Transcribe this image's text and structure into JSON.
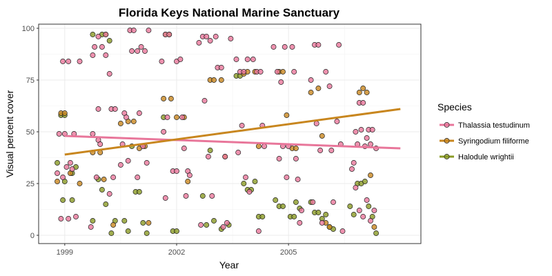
{
  "chart_data": {
    "type": "scatter",
    "title": "Florida Keys National Marine Sanctuary",
    "xlabel": "Year",
    "ylabel": "Visual percent cover",
    "xlim": [
      1998.3,
      2008.55
    ],
    "ylim": [
      -4,
      102
    ],
    "x_ticks": [
      1999,
      2002,
      2005
    ],
    "y_ticks": [
      0,
      25,
      50,
      75,
      100
    ],
    "grid": true,
    "legend": {
      "title": "Species",
      "position": "right"
    },
    "series": [
      {
        "name": "Thalassia testudinum",
        "color": "#E8769A",
        "trend": {
          "x": [
            1999,
            2008
          ],
          "y": [
            48,
            42
          ]
        },
        "points": [
          [
            1998.9,
            8
          ],
          [
            1999.1,
            8
          ],
          [
            1998.95,
            28
          ],
          [
            1999.05,
            33
          ],
          [
            1999.15,
            35
          ],
          [
            1998.85,
            49
          ],
          [
            1999.0,
            49
          ],
          [
            1999.25,
            49
          ],
          [
            1998.95,
            84
          ],
          [
            1999.1,
            84
          ],
          [
            1999.4,
            84
          ],
          [
            1999.3,
            9
          ],
          [
            1998.8,
            30
          ],
          [
            1999.2,
            32
          ],
          [
            1999.7,
            4
          ],
          [
            1999.85,
            28
          ],
          [
            1999.9,
            46
          ],
          [
            1999.75,
            49
          ],
          [
            1999.9,
            61
          ],
          [
            1999.75,
            87
          ],
          [
            1999.8,
            91
          ],
          [
            1999.9,
            96
          ],
          [
            2000.0,
            91
          ],
          [
            2000.1,
            87
          ],
          [
            2000.1,
            97
          ],
          [
            2000.2,
            78
          ],
          [
            2000.25,
            61
          ],
          [
            2000.35,
            61
          ],
          [
            2000.3,
            28
          ],
          [
            2000.2,
            20
          ],
          [
            1999.95,
            44
          ],
          [
            2000.5,
            34
          ],
          [
            2000.55,
            44
          ],
          [
            2000.6,
            59
          ],
          [
            2000.65,
            57
          ],
          [
            2000.7,
            36
          ],
          [
            2000.75,
            99
          ],
          [
            2000.85,
            99
          ],
          [
            2000.8,
            89
          ],
          [
            2000.95,
            89
          ],
          [
            2001.05,
            91
          ],
          [
            2001.15,
            89
          ],
          [
            2001.0,
            59
          ],
          [
            2001.1,
            43
          ],
          [
            2001.2,
            35
          ],
          [
            2001.25,
            99
          ],
          [
            2000.95,
            28
          ],
          [
            2001.6,
            84
          ],
          [
            2001.7,
            97
          ],
          [
            2001.8,
            97
          ],
          [
            2001.75,
            57
          ],
          [
            2001.9,
            31
          ],
          [
            2001.65,
            50
          ],
          [
            2001.7,
            18
          ],
          [
            2002.0,
            84
          ],
          [
            2002.1,
            85
          ],
          [
            2002.15,
            57
          ],
          [
            2002.2,
            42
          ],
          [
            2002.25,
            19
          ],
          [
            2002.3,
            31
          ],
          [
            2002.35,
            29
          ],
          [
            2002.0,
            31
          ],
          [
            2002.6,
            93
          ],
          [
            2002.7,
            96
          ],
          [
            2002.8,
            96
          ],
          [
            2002.9,
            94
          ],
          [
            2002.75,
            65
          ],
          [
            2002.85,
            38
          ],
          [
            2002.95,
            19
          ],
          [
            2002.65,
            5
          ],
          [
            2003.05,
            96
          ],
          [
            2003.1,
            81
          ],
          [
            2003.2,
            81
          ],
          [
            2003.3,
            38
          ],
          [
            2003.25,
            4
          ],
          [
            2003.35,
            6
          ],
          [
            2003.45,
            95
          ],
          [
            2003.6,
            85
          ],
          [
            2003.7,
            79
          ],
          [
            2003.8,
            79
          ],
          [
            2003.9,
            85
          ],
          [
            2003.75,
            53
          ],
          [
            2003.65,
            40
          ],
          [
            2003.85,
            28
          ],
          [
            2003.95,
            21
          ],
          [
            2004.05,
            85
          ],
          [
            2004.15,
            79
          ],
          [
            2004.25,
            79
          ],
          [
            2004.3,
            53
          ],
          [
            2004.35,
            43
          ],
          [
            2004.2,
            2
          ],
          [
            2004.6,
            91
          ],
          [
            2004.7,
            79
          ],
          [
            2004.8,
            74
          ],
          [
            2004.9,
            91
          ],
          [
            2004.85,
            43
          ],
          [
            2004.75,
            37
          ],
          [
            2004.95,
            28
          ],
          [
            2005.0,
            43
          ],
          [
            2005.1,
            91
          ],
          [
            2005.15,
            79
          ],
          [
            2005.2,
            37
          ],
          [
            2005.25,
            27
          ],
          [
            2005.3,
            6
          ],
          [
            2005.35,
            12
          ],
          [
            2005.6,
            75
          ],
          [
            2005.7,
            92
          ],
          [
            2005.8,
            92
          ],
          [
            2005.75,
            54
          ],
          [
            2005.85,
            41
          ],
          [
            2005.65,
            16
          ],
          [
            2005.9,
            6
          ],
          [
            2006.0,
            79
          ],
          [
            2006.1,
            72
          ],
          [
            2006.15,
            41
          ],
          [
            2006.2,
            16
          ],
          [
            2006.3,
            55
          ],
          [
            2006.35,
            92
          ],
          [
            2006.4,
            44
          ],
          [
            2006.45,
            2
          ],
          [
            2006.7,
            32
          ],
          [
            2006.75,
            35
          ],
          [
            2006.8,
            50
          ],
          [
            2006.85,
            44
          ],
          [
            2006.9,
            64
          ],
          [
            2006.95,
            51
          ],
          [
            2007.0,
            64
          ],
          [
            2007.05,
            43
          ],
          [
            2007.1,
            47
          ],
          [
            2007.15,
            51
          ],
          [
            2007.2,
            44
          ],
          [
            2007.25,
            51
          ],
          [
            2007.35,
            42
          ],
          [
            2006.8,
            23
          ],
          [
            2006.9,
            12
          ],
          [
            2007.0,
            9
          ],
          [
            2007.1,
            17
          ],
          [
            2007.2,
            7
          ],
          [
            2007.3,
            12
          ]
        ]
      },
      {
        "name": "Syringodium filiforme",
        "color": "#C8861E",
        "trend": {
          "x": [
            1999,
            2008
          ],
          "y": [
            39,
            61
          ]
        },
        "points": [
          [
            1998.9,
            59
          ],
          [
            1999.0,
            59
          ],
          [
            1999.15,
            30
          ],
          [
            1998.8,
            26
          ],
          [
            1999.4,
            25
          ],
          [
            1999.75,
            40
          ],
          [
            1999.95,
            40
          ],
          [
            2000.05,
            27
          ],
          [
            2000.3,
            5
          ],
          [
            2000.5,
            54
          ],
          [
            2000.7,
            55
          ],
          [
            2000.85,
            55
          ],
          [
            2001.0,
            42
          ],
          [
            2001.15,
            43
          ],
          [
            2001.25,
            6
          ],
          [
            2001.65,
            66
          ],
          [
            2001.85,
            66
          ],
          [
            2002.0,
            57
          ],
          [
            2002.2,
            57
          ],
          [
            2002.3,
            26
          ],
          [
            2002.9,
            75
          ],
          [
            2003.0,
            75
          ],
          [
            2003.2,
            75
          ],
          [
            2003.3,
            38
          ],
          [
            2003.8,
            78
          ],
          [
            2003.9,
            79
          ],
          [
            2004.1,
            79
          ],
          [
            2004.2,
            43
          ],
          [
            2004.75,
            79
          ],
          [
            2004.85,
            79
          ],
          [
            2004.95,
            58
          ],
          [
            2005.1,
            42
          ],
          [
            2005.2,
            42
          ],
          [
            2005.6,
            69
          ],
          [
            2005.8,
            71
          ],
          [
            2005.9,
            48
          ],
          [
            2006.0,
            6
          ],
          [
            2006.1,
            4
          ],
          [
            2006.9,
            69
          ],
          [
            2007.0,
            71
          ],
          [
            2007.1,
            69
          ],
          [
            2007.2,
            29
          ],
          [
            2007.3,
            4
          ]
        ]
      },
      {
        "name": "Halodule wrightii",
        "color": "#8A9A24",
        "trend": null,
        "points": [
          [
            1998.9,
            58
          ],
          [
            1999.0,
            58
          ],
          [
            1998.8,
            35
          ],
          [
            1999.0,
            26
          ],
          [
            1999.2,
            30
          ],
          [
            1998.95,
            17
          ],
          [
            1999.2,
            17
          ],
          [
            1999.3,
            33
          ],
          [
            1999.75,
            97
          ],
          [
            2000.0,
            97
          ],
          [
            2000.1,
            97
          ],
          [
            2000.2,
            94
          ],
          [
            1999.9,
            27
          ],
          [
            2000.0,
            22
          ],
          [
            2000.1,
            15
          ],
          [
            1999.75,
            7
          ],
          [
            2000.25,
            1
          ],
          [
            2000.35,
            7
          ],
          [
            2000.6,
            7
          ],
          [
            2000.7,
            2
          ],
          [
            2000.8,
            43
          ],
          [
            2000.9,
            21
          ],
          [
            2001.0,
            21
          ],
          [
            2001.1,
            6
          ],
          [
            2001.2,
            1
          ],
          [
            2001.7,
            97
          ],
          [
            2001.8,
            97
          ],
          [
            2001.65,
            57
          ],
          [
            2001.9,
            2
          ],
          [
            2002.0,
            2
          ],
          [
            2002.7,
            19
          ],
          [
            2002.8,
            5
          ],
          [
            2002.9,
            41
          ],
          [
            2003.0,
            7
          ],
          [
            2003.2,
            3
          ],
          [
            2003.4,
            5
          ],
          [
            2003.6,
            77
          ],
          [
            2003.7,
            77
          ],
          [
            2003.8,
            25
          ],
          [
            2003.9,
            22
          ],
          [
            2004.0,
            22
          ],
          [
            2004.1,
            26
          ],
          [
            2004.2,
            9
          ],
          [
            2004.3,
            9
          ],
          [
            2004.65,
            17
          ],
          [
            2004.75,
            14
          ],
          [
            2004.85,
            14
          ],
          [
            2005.05,
            9
          ],
          [
            2005.15,
            9
          ],
          [
            2005.2,
            16
          ],
          [
            2005.3,
            13
          ],
          [
            2005.6,
            16
          ],
          [
            2005.7,
            11
          ],
          [
            2005.8,
            11
          ],
          [
            2005.9,
            8
          ],
          [
            2006.0,
            10
          ],
          [
            2006.1,
            4
          ],
          [
            2006.2,
            3
          ],
          [
            2006.65,
            14
          ],
          [
            2006.75,
            10
          ],
          [
            2006.85,
            25
          ],
          [
            2006.95,
            25
          ],
          [
            2007.05,
            26
          ],
          [
            2007.15,
            14
          ],
          [
            2007.25,
            9
          ],
          [
            2007.35,
            1
          ]
        ]
      }
    ]
  }
}
